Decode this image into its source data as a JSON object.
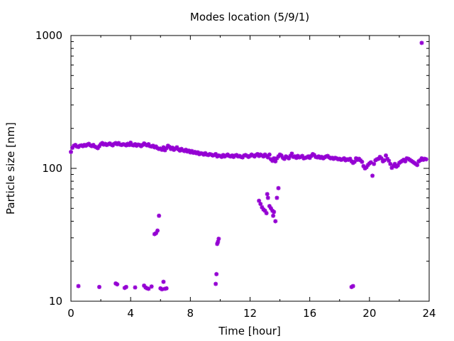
{
  "chart_data": {
    "type": "scatter",
    "title": "Modes location (5/9/1)",
    "xlabel": "Time [hour]",
    "ylabel": "Particle size [nm]",
    "xlim": [
      0,
      24
    ],
    "ylim": [
      10,
      1000
    ],
    "yscale": "log",
    "xticks": [
      0,
      4,
      8,
      12,
      16,
      20,
      24
    ],
    "yticks": [
      10,
      100,
      1000
    ],
    "xtick_labels": [
      "0",
      "4",
      "8",
      "12",
      "16",
      "20",
      "24"
    ],
    "ytick_labels": [
      "10",
      "100",
      "1000"
    ],
    "grid": false,
    "marker_color": "#9400d3",
    "points": [
      [
        0.0,
        133
      ],
      [
        0.1,
        143
      ],
      [
        0.2,
        148
      ],
      [
        0.3,
        150
      ],
      [
        0.4,
        146
      ],
      [
        0.5,
        145
      ],
      [
        0.6,
        148
      ],
      [
        0.7,
        149
      ],
      [
        0.8,
        147
      ],
      [
        0.9,
        150
      ],
      [
        1.0,
        148
      ],
      [
        1.1,
        151
      ],
      [
        1.2,
        153
      ],
      [
        1.3,
        149
      ],
      [
        1.4,
        147
      ],
      [
        1.5,
        150
      ],
      [
        1.6,
        146
      ],
      [
        1.7,
        144
      ],
      [
        1.8,
        142
      ],
      [
        1.9,
        147
      ],
      [
        2.0,
        152
      ],
      [
        2.1,
        155
      ],
      [
        2.2,
        151
      ],
      [
        2.3,
        153
      ],
      [
        2.4,
        150
      ],
      [
        2.5,
        152
      ],
      [
        2.6,
        154
      ],
      [
        2.7,
        151
      ],
      [
        2.8,
        149
      ],
      [
        2.9,
        153
      ],
      [
        3.0,
        155
      ],
      [
        3.1,
        152
      ],
      [
        3.2,
        155
      ],
      [
        3.3,
        151
      ],
      [
        3.4,
        150
      ],
      [
        3.5,
        152
      ],
      [
        3.6,
        151
      ],
      [
        3.7,
        149
      ],
      [
        3.8,
        153
      ],
      [
        3.9,
        150
      ],
      [
        4.0,
        156
      ],
      [
        4.1,
        150
      ],
      [
        4.2,
        149
      ],
      [
        4.3,
        152
      ],
      [
        4.4,
        148
      ],
      [
        4.5,
        151
      ],
      [
        4.6,
        150
      ],
      [
        4.7,
        147
      ],
      [
        4.8,
        150
      ],
      [
        4.9,
        154
      ],
      [
        5.0,
        151
      ],
      [
        5.1,
        149
      ],
      [
        5.2,
        152
      ],
      [
        5.3,
        147
      ],
      [
        5.4,
        146
      ],
      [
        5.5,
        148
      ],
      [
        5.6,
        144
      ],
      [
        5.7,
        146
      ],
      [
        5.8,
        142
      ],
      [
        5.9,
        140
      ],
      [
        6.0,
        141
      ],
      [
        6.1,
        138
      ],
      [
        6.2,
        144
      ],
      [
        6.3,
        137
      ],
      [
        6.4,
        142
      ],
      [
        6.5,
        148
      ],
      [
        6.6,
        145
      ],
      [
        6.7,
        140
      ],
      [
        6.8,
        143
      ],
      [
        6.9,
        138
      ],
      [
        7.0,
        141
      ],
      [
        7.1,
        144
      ],
      [
        7.2,
        139
      ],
      [
        7.3,
        136
      ],
      [
        7.4,
        140
      ],
      [
        7.5,
        137
      ],
      [
        7.6,
        135
      ],
      [
        7.7,
        138
      ],
      [
        7.8,
        134
      ],
      [
        7.9,
        136
      ],
      [
        8.0,
        132
      ],
      [
        8.1,
        135
      ],
      [
        8.2,
        131
      ],
      [
        8.3,
        133
      ],
      [
        8.4,
        130
      ],
      [
        8.5,
        132
      ],
      [
        8.6,
        128
      ],
      [
        8.7,
        130
      ],
      [
        8.8,
        129
      ],
      [
        8.9,
        127
      ],
      [
        9.0,
        130
      ],
      [
        9.1,
        127
      ],
      [
        9.2,
        126
      ],
      [
        9.3,
        128
      ],
      [
        9.4,
        127
      ],
      [
        9.5,
        125
      ],
      [
        9.6,
        126
      ],
      [
        9.7,
        128
      ],
      [
        9.8,
        123
      ],
      [
        9.9,
        125
      ],
      [
        10.0,
        124
      ],
      [
        10.1,
        122
      ],
      [
        10.2,
        126
      ],
      [
        10.3,
        123
      ],
      [
        10.4,
        125
      ],
      [
        10.5,
        127
      ],
      [
        10.6,
        124
      ],
      [
        10.7,
        123
      ],
      [
        10.8,
        125
      ],
      [
        10.9,
        122
      ],
      [
        11.0,
        125
      ],
      [
        11.1,
        126
      ],
      [
        11.2,
        123
      ],
      [
        11.3,
        124
      ],
      [
        11.4,
        122
      ],
      [
        11.5,
        121
      ],
      [
        11.6,
        125
      ],
      [
        11.7,
        126
      ],
      [
        11.8,
        124
      ],
      [
        11.9,
        122
      ],
      [
        12.0,
        124
      ],
      [
        12.1,
        127
      ],
      [
        12.2,
        125
      ],
      [
        12.3,
        123
      ],
      [
        12.4,
        126
      ],
      [
        12.5,
        128
      ],
      [
        12.6,
        124
      ],
      [
        12.7,
        127
      ],
      [
        12.8,
        125
      ],
      [
        12.9,
        123
      ],
      [
        13.0,
        127
      ],
      [
        13.1,
        124
      ],
      [
        13.2,
        121
      ],
      [
        13.3,
        127
      ],
      [
        13.4,
        117
      ],
      [
        13.5,
        114
      ],
      [
        13.6,
        119
      ],
      [
        13.7,
        113
      ],
      [
        13.8,
        119
      ],
      [
        13.9,
        123
      ],
      [
        14.0,
        127
      ],
      [
        14.1,
        125
      ],
      [
        14.2,
        120
      ],
      [
        14.3,
        118
      ],
      [
        14.4,
        123
      ],
      [
        14.5,
        121
      ],
      [
        14.6,
        119
      ],
      [
        14.7,
        124
      ],
      [
        14.8,
        129
      ],
      [
        14.9,
        122
      ],
      [
        15.0,
        123
      ],
      [
        15.1,
        120
      ],
      [
        15.2,
        124
      ],
      [
        15.3,
        121
      ],
      [
        15.4,
        122
      ],
      [
        15.5,
        124
      ],
      [
        15.6,
        119
      ],
      [
        15.7,
        120
      ],
      [
        15.8,
        121
      ],
      [
        15.9,
        123
      ],
      [
        16.0,
        120
      ],
      [
        16.1,
        124
      ],
      [
        16.2,
        128
      ],
      [
        16.3,
        126
      ],
      [
        16.4,
        122
      ],
      [
        16.5,
        121
      ],
      [
        16.6,
        123
      ],
      [
        16.7,
        120
      ],
      [
        16.8,
        122
      ],
      [
        16.9,
        119
      ],
      [
        17.0,
        121
      ],
      [
        17.1,
        123
      ],
      [
        17.2,
        124
      ],
      [
        17.3,
        121
      ],
      [
        17.4,
        119
      ],
      [
        17.5,
        120
      ],
      [
        17.6,
        118
      ],
      [
        17.7,
        120
      ],
      [
        17.8,
        119
      ],
      [
        17.9,
        117
      ],
      [
        18.0,
        118
      ],
      [
        18.1,
        116
      ],
      [
        18.2,
        117
      ],
      [
        18.3,
        119
      ],
      [
        18.4,
        115
      ],
      [
        18.5,
        117
      ],
      [
        18.6,
        116
      ],
      [
        18.7,
        118
      ],
      [
        18.8,
        113
      ],
      [
        18.9,
        110
      ],
      [
        19.0,
        112
      ],
      [
        19.1,
        119
      ],
      [
        19.2,
        116
      ],
      [
        19.3,
        118
      ],
      [
        19.4,
        115
      ],
      [
        19.5,
        112
      ],
      [
        19.6,
        104
      ],
      [
        19.7,
        100
      ],
      [
        19.8,
        102
      ],
      [
        19.9,
        106
      ],
      [
        20.0,
        109
      ],
      [
        20.1,
        111
      ],
      [
        20.2,
        88
      ],
      [
        20.3,
        108
      ],
      [
        20.4,
        115
      ],
      [
        20.5,
        117
      ],
      [
        20.6,
        118
      ],
      [
        20.7,
        122
      ],
      [
        20.8,
        119
      ],
      [
        20.9,
        113
      ],
      [
        21.0,
        115
      ],
      [
        21.1,
        125
      ],
      [
        21.2,
        118
      ],
      [
        21.3,
        114
      ],
      [
        21.4,
        108
      ],
      [
        21.5,
        101
      ],
      [
        21.6,
        104
      ],
      [
        21.7,
        108
      ],
      [
        21.8,
        103
      ],
      [
        21.9,
        105
      ],
      [
        22.0,
        110
      ],
      [
        22.1,
        112
      ],
      [
        22.2,
        114
      ],
      [
        22.3,
        116
      ],
      [
        22.4,
        113
      ],
      [
        22.5,
        119
      ],
      [
        22.6,
        118
      ],
      [
        22.7,
        116
      ],
      [
        22.8,
        114
      ],
      [
        22.9,
        112
      ],
      [
        23.0,
        110
      ],
      [
        23.1,
        108
      ],
      [
        23.2,
        106
      ],
      [
        23.3,
        113
      ],
      [
        23.4,
        115
      ],
      [
        23.5,
        119
      ],
      [
        23.6,
        116
      ],
      [
        23.7,
        118
      ],
      [
        23.8,
        117
      ],
      [
        0.5,
        13
      ],
      [
        1.9,
        12.8
      ],
      [
        3.0,
        13.6
      ],
      [
        3.1,
        13.4
      ],
      [
        3.6,
        12.6
      ],
      [
        3.7,
        12.8
      ],
      [
        4.3,
        12.7
      ],
      [
        4.9,
        13.1
      ],
      [
        5.0,
        12.7
      ],
      [
        5.1,
        12.5
      ],
      [
        5.2,
        12.4
      ],
      [
        5.4,
        12.9
      ],
      [
        5.6,
        32
      ],
      [
        5.7,
        32.5
      ],
      [
        5.8,
        34
      ],
      [
        5.9,
        44
      ],
      [
        6.0,
        12.5
      ],
      [
        6.1,
        12.3
      ],
      [
        6.2,
        14
      ],
      [
        6.3,
        12.4
      ],
      [
        6.4,
        12.5
      ],
      [
        9.7,
        13.5
      ],
      [
        9.75,
        16
      ],
      [
        9.8,
        27
      ],
      [
        9.85,
        28
      ],
      [
        9.9,
        29.5
      ],
      [
        12.6,
        57
      ],
      [
        12.7,
        54
      ],
      [
        12.8,
        51
      ],
      [
        12.9,
        49
      ],
      [
        13.0,
        48
      ],
      [
        13.1,
        46
      ],
      [
        13.15,
        64
      ],
      [
        13.2,
        60
      ],
      [
        13.3,
        52
      ],
      [
        13.4,
        50
      ],
      [
        13.5,
        48
      ],
      [
        13.55,
        44
      ],
      [
        13.6,
        47
      ],
      [
        13.7,
        40
      ],
      [
        13.8,
        60
      ],
      [
        13.9,
        71
      ],
      [
        18.8,
        12.8
      ],
      [
        18.9,
        13
      ],
      [
        23.5,
        880
      ]
    ]
  }
}
